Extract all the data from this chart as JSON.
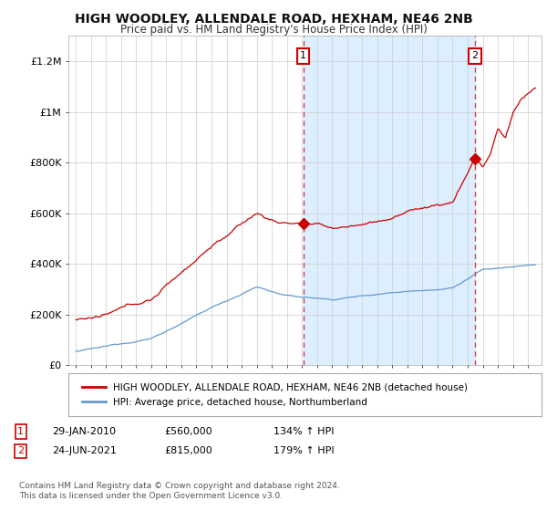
{
  "title": "HIGH WOODLEY, ALLENDALE ROAD, HEXHAM, NE46 2NB",
  "subtitle": "Price paid vs. HM Land Registry's House Price Index (HPI)",
  "ylim": [
    0,
    1300000
  ],
  "yticks": [
    0,
    200000,
    400000,
    600000,
    800000,
    1000000,
    1200000
  ],
  "ytick_labels": [
    "£0",
    "£200K",
    "£400K",
    "£600K",
    "£800K",
    "£1M",
    "£1.2M"
  ],
  "red_line_color": "#cc0000",
  "blue_line_color": "#6699cc",
  "shade_color": "#ddeeff",
  "annotation_line_color": "#cc4444",
  "transaction_1": {
    "price": 560000,
    "x": 2010.08
  },
  "transaction_2": {
    "price": 815000,
    "x": 2021.48
  },
  "legend_red_label": "HIGH WOODLEY, ALLENDALE ROAD, HEXHAM, NE46 2NB (detached house)",
  "legend_blue_label": "HPI: Average price, detached house, Northumberland",
  "table_row1": [
    "1",
    "29-JAN-2010",
    "£560,000",
    "134% ↑ HPI"
  ],
  "table_row2": [
    "2",
    "24-JUN-2021",
    "£815,000",
    "179% ↑ HPI"
  ],
  "footnote": "Contains HM Land Registry data © Crown copyright and database right 2024.\nThis data is licensed under the Open Government Licence v3.0.",
  "background_color": "#ffffff",
  "grid_color": "#cccccc"
}
